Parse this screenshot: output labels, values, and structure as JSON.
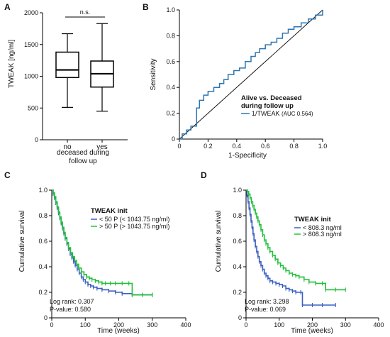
{
  "panels": {
    "a": "A",
    "b": "B",
    "c": "C",
    "d": "D"
  },
  "colors": {
    "blue": "#3b5fc0",
    "green": "#22c03a",
    "roc": "#2f75b0",
    "box": "#000000"
  },
  "chart_data": [
    {
      "id": "A",
      "type": "box",
      "ylabel": "TWEAK [ng/ml]",
      "xlabel_line1": "deceased during",
      "xlabel_line2": "follow up",
      "ylim": [
        0,
        2000
      ],
      "yticks": [
        0,
        500,
        1000,
        1500,
        2000
      ],
      "significance": "n.s.",
      "categories": [
        "no",
        "yes"
      ],
      "boxes": [
        {
          "name": "no",
          "min": 510,
          "q1": 980,
          "median": 1100,
          "q3": 1380,
          "max": 1670
        },
        {
          "name": "yes",
          "min": 450,
          "q1": 830,
          "median": 1040,
          "q3": 1240,
          "max": 1830
        }
      ]
    },
    {
      "id": "B",
      "type": "line",
      "xlabel": "1-Specificity",
      "ylabel": "Sensitivity",
      "xlim": [
        0,
        1
      ],
      "ylim": [
        0,
        1
      ],
      "xticks": [
        0,
        0.2,
        0.4,
        0.6,
        0.8,
        1.0
      ],
      "xtick_labels": [
        "0",
        "0.2",
        "0.4",
        "0.6",
        "0.8",
        "1.0"
      ],
      "yticks": [
        0,
        0.2,
        0.4,
        0.6,
        0.8,
        1.0
      ],
      "ytick_labels": [
        "0",
        "0.2",
        "0.4",
        "0.6",
        "0.8",
        "1.0"
      ],
      "legend_title_line1": "Alive vs. Deceased",
      "legend_title_line2": "during follow up",
      "series": [
        {
          "name": "1/TWEAK",
          "auc_label": "(AUC 0.564)",
          "x": [
            0,
            0.02,
            0.02,
            0.05,
            0.05,
            0.08,
            0.08,
            0.12,
            0.12,
            0.14,
            0.14,
            0.17,
            0.17,
            0.2,
            0.2,
            0.24,
            0.24,
            0.28,
            0.28,
            0.31,
            0.31,
            0.34,
            0.34,
            0.38,
            0.38,
            0.42,
            0.42,
            0.46,
            0.46,
            0.5,
            0.5,
            0.53,
            0.53,
            0.56,
            0.56,
            0.6,
            0.6,
            0.64,
            0.64,
            0.68,
            0.68,
            0.72,
            0.72,
            0.76,
            0.76,
            0.8,
            0.8,
            0.85,
            0.85,
            0.9,
            0.9,
            0.95,
            0.95,
            1.0,
            1.0
          ],
          "y": [
            0,
            0,
            0.04,
            0.04,
            0.07,
            0.07,
            0.1,
            0.1,
            0.24,
            0.24,
            0.3,
            0.3,
            0.34,
            0.34,
            0.37,
            0.37,
            0.4,
            0.4,
            0.43,
            0.43,
            0.46,
            0.46,
            0.5,
            0.5,
            0.53,
            0.53,
            0.55,
            0.55,
            0.6,
            0.6,
            0.64,
            0.64,
            0.67,
            0.67,
            0.7,
            0.7,
            0.73,
            0.73,
            0.75,
            0.75,
            0.78,
            0.78,
            0.82,
            0.82,
            0.85,
            0.85,
            0.87,
            0.87,
            0.9,
            0.9,
            0.93,
            0.93,
            0.96,
            0.96,
            1.0
          ]
        },
        {
          "name": "",
          "x": [
            0,
            1
          ],
          "y": [
            0,
            1
          ]
        }
      ]
    },
    {
      "id": "C",
      "type": "line",
      "xlabel": "Time (weeks)",
      "ylabel": "Cumulative survival",
      "xlim": [
        0,
        400
      ],
      "ylim": [
        0,
        1
      ],
      "xticks": [
        0,
        100,
        200,
        300,
        400
      ],
      "xtick_labels": [
        "0",
        "100",
        "200",
        "300",
        "400"
      ],
      "yticks": [
        0,
        0.2,
        0.4,
        0.6,
        0.8,
        1.0
      ],
      "ytick_labels": [
        "0",
        "0.2",
        "0.4",
        "0.6",
        "0.8",
        "1.0"
      ],
      "legend_title": "TWEAK init",
      "stat_line1": "Log rank: 0.307",
      "stat_line2": "P-value: 0.580",
      "series": [
        {
          "name": "< 50 P (< 1043.75 ng/ml)",
          "color": "blue",
          "x": [
            0,
            4,
            8,
            12,
            16,
            20,
            24,
            28,
            32,
            36,
            40,
            45,
            50,
            55,
            60,
            65,
            70,
            76,
            82,
            88,
            94,
            100,
            108,
            116,
            124,
            135,
            150,
            170,
            190,
            210,
            240,
            270,
            300
          ],
          "y": [
            1.0,
            0.97,
            0.94,
            0.9,
            0.86,
            0.82,
            0.78,
            0.74,
            0.7,
            0.66,
            0.62,
            0.58,
            0.54,
            0.5,
            0.47,
            0.44,
            0.41,
            0.38,
            0.35,
            0.32,
            0.3,
            0.28,
            0.26,
            0.25,
            0.24,
            0.23,
            0.22,
            0.21,
            0.2,
            0.19,
            0.18,
            0.18,
            0.18
          ]
        },
        {
          "name": "> 50 P (> 1043.75 ng/ml)",
          "color": "green",
          "x": [
            0,
            4,
            8,
            12,
            16,
            20,
            24,
            28,
            32,
            36,
            40,
            45,
            50,
            56,
            62,
            68,
            74,
            80,
            88,
            96,
            104,
            112,
            120,
            130,
            140,
            150,
            160,
            175,
            190,
            210,
            230,
            240,
            270,
            300
          ],
          "y": [
            1.0,
            0.98,
            0.95,
            0.91,
            0.87,
            0.83,
            0.79,
            0.75,
            0.71,
            0.67,
            0.63,
            0.59,
            0.55,
            0.51,
            0.48,
            0.45,
            0.42,
            0.39,
            0.36,
            0.34,
            0.32,
            0.31,
            0.3,
            0.29,
            0.28,
            0.27,
            0.27,
            0.27,
            0.27,
            0.27,
            0.27,
            0.18,
            0.18,
            0.18
          ]
        }
      ]
    },
    {
      "id": "D",
      "type": "line",
      "xlabel": "Time (weeks)",
      "ylabel": "Cumulative survival",
      "xlim": [
        0,
        400
      ],
      "ylim": [
        0,
        1
      ],
      "xticks": [
        0,
        100,
        200,
        300,
        400
      ],
      "xtick_labels": [
        "0",
        "100",
        "200",
        "300",
        "400"
      ],
      "yticks": [
        0,
        0.2,
        0.4,
        0.6,
        0.8,
        1.0
      ],
      "ytick_labels": [
        "0",
        "0.2",
        "0.4",
        "0.6",
        "0.8",
        "1.0"
      ],
      "legend_title": "TWEAK init",
      "stat_line1": "Log rank: 3.298",
      "stat_line2": "P-value: 0.069",
      "series": [
        {
          "name": "< 808.3 ng/ml",
          "color": "blue",
          "x": [
            0,
            3,
            6,
            9,
            12,
            15,
            18,
            21,
            24,
            28,
            32,
            36,
            40,
            45,
            50,
            55,
            60,
            66,
            72,
            80,
            90,
            100,
            110,
            120,
            130,
            140,
            150,
            165,
            170,
            200,
            230,
            270
          ],
          "y": [
            1.0,
            0.96,
            0.91,
            0.86,
            0.81,
            0.76,
            0.71,
            0.66,
            0.61,
            0.56,
            0.52,
            0.48,
            0.44,
            0.41,
            0.38,
            0.35,
            0.33,
            0.31,
            0.29,
            0.28,
            0.27,
            0.26,
            0.25,
            0.23,
            0.22,
            0.21,
            0.2,
            0.2,
            0.1,
            0.1,
            0.1,
            0.1
          ]
        },
        {
          "name": "> 808.3 ng/ml",
          "color": "green",
          "x": [
            0,
            4,
            8,
            12,
            16,
            20,
            24,
            28,
            32,
            36,
            40,
            45,
            50,
            55,
            60,
            66,
            72,
            80,
            88,
            96,
            104,
            112,
            120,
            130,
            140,
            150,
            160,
            175,
            190,
            210,
            230,
            240,
            270,
            300
          ],
          "y": [
            1.0,
            0.99,
            0.97,
            0.94,
            0.91,
            0.88,
            0.85,
            0.82,
            0.79,
            0.76,
            0.73,
            0.69,
            0.65,
            0.61,
            0.58,
            0.55,
            0.52,
            0.49,
            0.46,
            0.43,
            0.41,
            0.39,
            0.37,
            0.35,
            0.34,
            0.33,
            0.32,
            0.3,
            0.28,
            0.27,
            0.27,
            0.22,
            0.22,
            0.22
          ]
        }
      ]
    }
  ]
}
